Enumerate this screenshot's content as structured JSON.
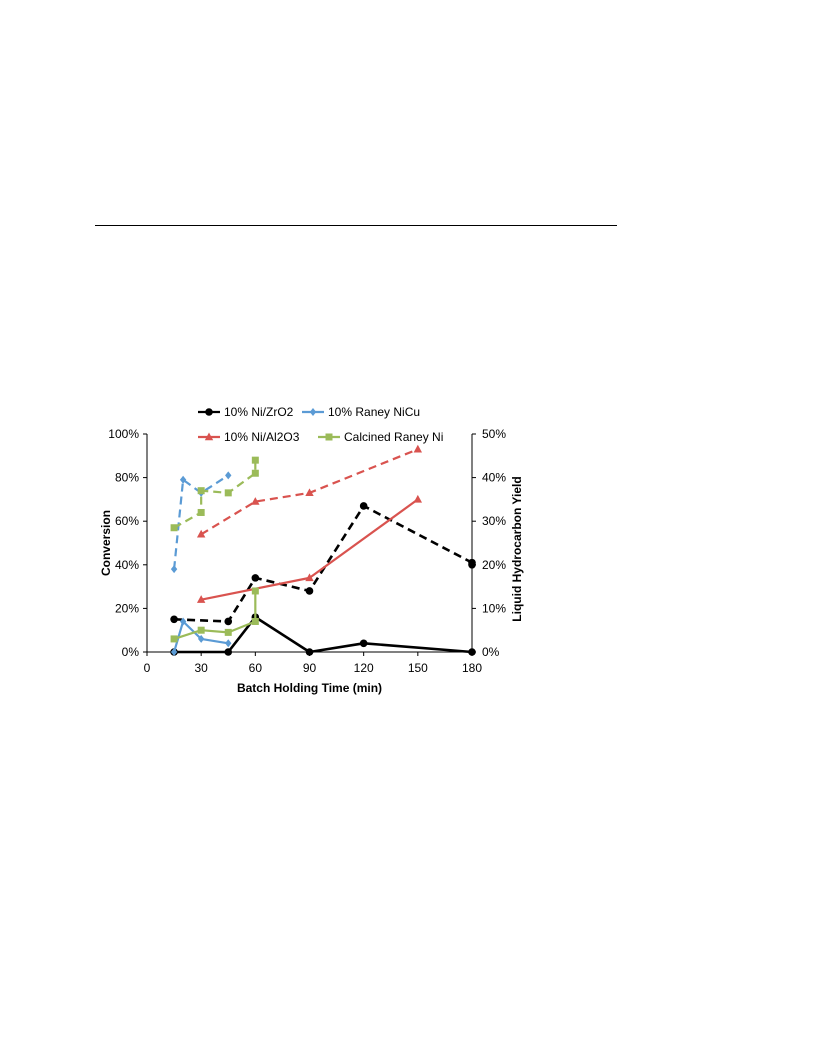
{
  "chart_data": {
    "type": "line",
    "title": "",
    "xlabel": "Batch Holding Time (min)",
    "ylabel": "Conversion",
    "y2label": "Liquid Hydrocarbon Yield",
    "x_ticks": [
      "0",
      "30",
      "60",
      "90",
      "120",
      "150",
      "180"
    ],
    "y_ticks": [
      "0%",
      "20%",
      "40%",
      "60%",
      "80%",
      "100%"
    ],
    "y2_ticks": [
      "0%",
      "10%",
      "20%",
      "30%",
      "40%",
      "50%"
    ],
    "xlim": [
      0,
      180
    ],
    "ylim": [
      0,
      100
    ],
    "y2lim": [
      0,
      50
    ],
    "grid": false,
    "legend_position": "top",
    "series": [
      {
        "name": "10% Ni/ZrO2",
        "axis": "left",
        "style": "dashed",
        "color": "#000000",
        "marker": "circle",
        "points": [
          [
            15,
            15
          ],
          [
            45,
            14
          ],
          [
            60,
            34
          ],
          [
            90,
            28
          ],
          [
            120,
            67
          ],
          [
            180,
            41
          ],
          [
            180,
            40
          ]
        ]
      },
      {
        "name": "10% Ni/ZrO2",
        "axis": "right",
        "style": "solid",
        "color": "#000000",
        "marker": "circle",
        "points": [
          [
            15,
            0
          ],
          [
            45,
            0
          ],
          [
            60,
            8
          ],
          [
            90,
            0
          ],
          [
            120,
            2
          ],
          [
            180,
            0
          ]
        ]
      },
      {
        "name": "10% Raney NiCu",
        "axis": "left",
        "style": "dashed",
        "color": "#5b9bd5",
        "marker": "diamond",
        "points": [
          [
            15,
            38
          ],
          [
            20,
            79
          ],
          [
            30,
            73
          ],
          [
            45,
            81
          ]
        ]
      },
      {
        "name": "10% Raney NiCu",
        "axis": "right",
        "style": "solid",
        "color": "#5b9bd5",
        "marker": "diamond",
        "points": [
          [
            15,
            0
          ],
          [
            20,
            7
          ],
          [
            30,
            3
          ],
          [
            45,
            2
          ]
        ]
      },
      {
        "name": "10% Ni/Al2O3",
        "axis": "left",
        "style": "dashed",
        "color": "#d9534f",
        "marker": "triangle",
        "points": [
          [
            30,
            54
          ],
          [
            60,
            69
          ],
          [
            90,
            73
          ],
          [
            150,
            93
          ]
        ]
      },
      {
        "name": "10% Ni/Al2O3",
        "axis": "right",
        "style": "solid",
        "color": "#d9534f",
        "marker": "triangle",
        "points": [
          [
            30,
            12
          ],
          [
            90,
            17
          ],
          [
            150,
            35
          ]
        ]
      },
      {
        "name": "Calcined Raney Ni",
        "axis": "left",
        "style": "dashed",
        "color": "#9bbb59",
        "marker": "square",
        "points": [
          [
            15,
            57
          ],
          [
            30,
            64
          ],
          [
            30,
            74
          ],
          [
            45,
            73
          ],
          [
            60,
            82
          ],
          [
            60,
            88
          ]
        ]
      },
      {
        "name": "Calcined Raney Ni",
        "axis": "right",
        "style": "solid",
        "color": "#9bbb59",
        "marker": "square",
        "points": [
          [
            15,
            3
          ],
          [
            30,
            5
          ],
          [
            45,
            4.5
          ],
          [
            60,
            7
          ],
          [
            60,
            14
          ]
        ]
      }
    ],
    "legend": [
      {
        "name": "10% Ni/ZrO2",
        "color": "#000000",
        "marker": "circle"
      },
      {
        "name": "10% Raney NiCu",
        "color": "#5b9bd5",
        "marker": "diamond"
      },
      {
        "name": "10% Ni/Al2O3",
        "color": "#d9534f",
        "marker": "triangle"
      },
      {
        "name": "Calcined Raney Ni",
        "color": "#9bbb59",
        "marker": "square"
      }
    ]
  }
}
